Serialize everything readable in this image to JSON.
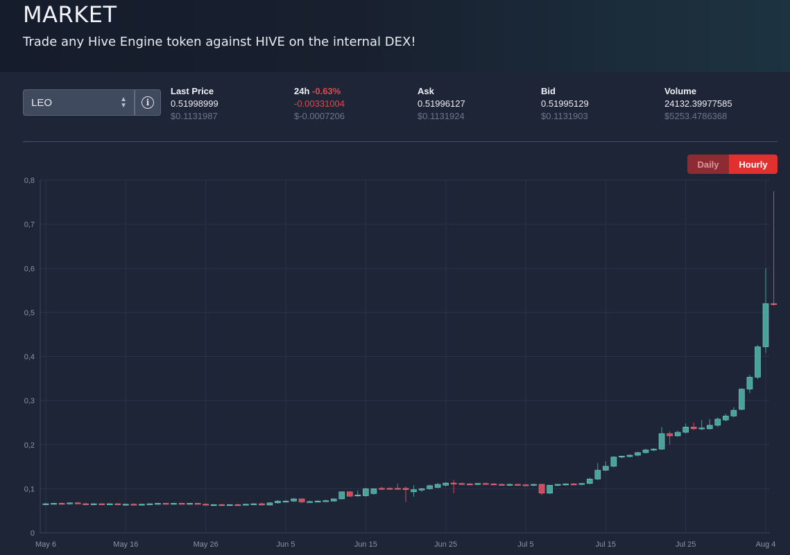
{
  "header": {
    "title": "MARKET",
    "subtitle": "Trade any Hive Engine token against HIVE on the internal DEX!"
  },
  "token": {
    "selected": "LEO"
  },
  "stats": {
    "last_price": {
      "label": "Last Price",
      "value": "0.51998999",
      "usd": "$0.1131987"
    },
    "change": {
      "label": "24h",
      "pct": "-0.63%",
      "value": "-0.00331004",
      "usd": "$-0.0007206"
    },
    "ask": {
      "label": "Ask",
      "value": "0.51996127",
      "usd": "$0.1131924"
    },
    "bid": {
      "label": "Bid",
      "value": "0.51995129",
      "usd": "$0.1131903"
    },
    "volume": {
      "label": "Volume",
      "value": "24132.39977585",
      "usd": "$5253.4786368"
    }
  },
  "interval": {
    "daily_label": "Daily",
    "hourly_label": "Hourly",
    "active": "Hourly"
  },
  "colors": {
    "up": "#4aa39a",
    "down": "#d04a5e",
    "accent": "#e0312f"
  },
  "chart_data": {
    "type": "candlestick",
    "y_tick_labels": [
      "0",
      "0,1",
      "0,2",
      "0,3",
      "0,4",
      "0,5",
      "0,6",
      "0,7",
      "0,8"
    ],
    "ylim": [
      0,
      0.8
    ],
    "x_tick_labels": [
      "May 6",
      "May 16",
      "May 26",
      "Jun 5",
      "Jun 15",
      "Jun 25",
      "Jul 5",
      "Jul 15",
      "Jul 25",
      "Aug 4"
    ],
    "x_range_days": [
      0,
      90
    ],
    "grid": true,
    "candles": [
      {
        "d": 0,
        "o": 0.065,
        "h": 0.068,
        "l": 0.063,
        "c": 0.066
      },
      {
        "d": 1,
        "o": 0.066,
        "h": 0.068,
        "l": 0.064,
        "c": 0.067
      },
      {
        "d": 2,
        "o": 0.067,
        "h": 0.069,
        "l": 0.065,
        "c": 0.066
      },
      {
        "d": 3,
        "o": 0.066,
        "h": 0.069,
        "l": 0.064,
        "c": 0.068
      },
      {
        "d": 4,
        "o": 0.068,
        "h": 0.07,
        "l": 0.066,
        "c": 0.066
      },
      {
        "d": 5,
        "o": 0.066,
        "h": 0.068,
        "l": 0.064,
        "c": 0.065
      },
      {
        "d": 6,
        "o": 0.065,
        "h": 0.067,
        "l": 0.063,
        "c": 0.066
      },
      {
        "d": 7,
        "o": 0.066,
        "h": 0.067,
        "l": 0.064,
        "c": 0.065
      },
      {
        "d": 8,
        "o": 0.065,
        "h": 0.067,
        "l": 0.063,
        "c": 0.066
      },
      {
        "d": 9,
        "o": 0.066,
        "h": 0.067,
        "l": 0.063,
        "c": 0.064
      },
      {
        "d": 10,
        "o": 0.064,
        "h": 0.066,
        "l": 0.062,
        "c": 0.065
      },
      {
        "d": 11,
        "o": 0.065,
        "h": 0.067,
        "l": 0.063,
        "c": 0.064
      },
      {
        "d": 12,
        "o": 0.064,
        "h": 0.066,
        "l": 0.062,
        "c": 0.065
      },
      {
        "d": 13,
        "o": 0.065,
        "h": 0.067,
        "l": 0.063,
        "c": 0.066
      },
      {
        "d": 14,
        "o": 0.066,
        "h": 0.068,
        "l": 0.064,
        "c": 0.067
      },
      {
        "d": 15,
        "o": 0.067,
        "h": 0.068,
        "l": 0.065,
        "c": 0.066
      },
      {
        "d": 16,
        "o": 0.066,
        "h": 0.068,
        "l": 0.064,
        "c": 0.067
      },
      {
        "d": 17,
        "o": 0.067,
        "h": 0.068,
        "l": 0.065,
        "c": 0.066
      },
      {
        "d": 18,
        "o": 0.066,
        "h": 0.068,
        "l": 0.064,
        "c": 0.067
      },
      {
        "d": 19,
        "o": 0.067,
        "h": 0.068,
        "l": 0.064,
        "c": 0.065
      },
      {
        "d": 20,
        "o": 0.065,
        "h": 0.067,
        "l": 0.062,
        "c": 0.063
      },
      {
        "d": 21,
        "o": 0.063,
        "h": 0.065,
        "l": 0.061,
        "c": 0.064
      },
      {
        "d": 22,
        "o": 0.064,
        "h": 0.066,
        "l": 0.062,
        "c": 0.063
      },
      {
        "d": 23,
        "o": 0.063,
        "h": 0.065,
        "l": 0.061,
        "c": 0.064
      },
      {
        "d": 24,
        "o": 0.064,
        "h": 0.066,
        "l": 0.062,
        "c": 0.063
      },
      {
        "d": 25,
        "o": 0.063,
        "h": 0.066,
        "l": 0.062,
        "c": 0.065
      },
      {
        "d": 26,
        "o": 0.065,
        "h": 0.067,
        "l": 0.063,
        "c": 0.066
      },
      {
        "d": 27,
        "o": 0.066,
        "h": 0.069,
        "l": 0.064,
        "c": 0.063
      },
      {
        "d": 28,
        "o": 0.063,
        "h": 0.069,
        "l": 0.062,
        "c": 0.068
      },
      {
        "d": 29,
        "o": 0.068,
        "h": 0.074,
        "l": 0.066,
        "c": 0.072
      },
      {
        "d": 30,
        "o": 0.071,
        "h": 0.074,
        "l": 0.069,
        "c": 0.072
      },
      {
        "d": 31,
        "o": 0.072,
        "h": 0.079,
        "l": 0.07,
        "c": 0.077
      },
      {
        "d": 32,
        "o": 0.077,
        "h": 0.078,
        "l": 0.068,
        "c": 0.07
      },
      {
        "d": 33,
        "o": 0.07,
        "h": 0.073,
        "l": 0.068,
        "c": 0.071
      },
      {
        "d": 34,
        "o": 0.071,
        "h": 0.074,
        "l": 0.069,
        "c": 0.072
      },
      {
        "d": 35,
        "o": 0.072,
        "h": 0.075,
        "l": 0.07,
        "c": 0.073
      },
      {
        "d": 36,
        "o": 0.072,
        "h": 0.078,
        "l": 0.071,
        "c": 0.077
      },
      {
        "d": 37,
        "o": 0.077,
        "h": 0.094,
        "l": 0.076,
        "c": 0.093
      },
      {
        "d": 38,
        "o": 0.093,
        "h": 0.094,
        "l": 0.082,
        "c": 0.083
      },
      {
        "d": 39,
        "o": 0.084,
        "h": 0.096,
        "l": 0.082,
        "c": 0.086
      },
      {
        "d": 40,
        "o": 0.084,
        "h": 0.102,
        "l": 0.082,
        "c": 0.1
      },
      {
        "d": 41,
        "o": 0.089,
        "h": 0.101,
        "l": 0.087,
        "c": 0.1
      },
      {
        "d": 42,
        "o": 0.101,
        "h": 0.104,
        "l": 0.097,
        "c": 0.1
      },
      {
        "d": 43,
        "o": 0.101,
        "h": 0.103,
        "l": 0.098,
        "c": 0.1
      },
      {
        "d": 44,
        "o": 0.101,
        "h": 0.112,
        "l": 0.098,
        "c": 0.1
      },
      {
        "d": 45,
        "o": 0.101,
        "h": 0.105,
        "l": 0.07,
        "c": 0.098
      },
      {
        "d": 46,
        "o": 0.093,
        "h": 0.108,
        "l": 0.082,
        "c": 0.098
      },
      {
        "d": 47,
        "o": 0.097,
        "h": 0.102,
        "l": 0.093,
        "c": 0.1
      },
      {
        "d": 48,
        "o": 0.1,
        "h": 0.109,
        "l": 0.098,
        "c": 0.107
      },
      {
        "d": 49,
        "o": 0.103,
        "h": 0.113,
        "l": 0.101,
        "c": 0.11
      },
      {
        "d": 50,
        "o": 0.108,
        "h": 0.115,
        "l": 0.105,
        "c": 0.113
      },
      {
        "d": 51,
        "o": 0.113,
        "h": 0.12,
        "l": 0.09,
        "c": 0.112
      },
      {
        "d": 52,
        "o": 0.112,
        "h": 0.114,
        "l": 0.109,
        "c": 0.111
      },
      {
        "d": 53,
        "o": 0.111,
        "h": 0.113,
        "l": 0.109,
        "c": 0.11
      },
      {
        "d": 54,
        "o": 0.11,
        "h": 0.113,
        "l": 0.108,
        "c": 0.112
      },
      {
        "d": 55,
        "o": 0.112,
        "h": 0.114,
        "l": 0.11,
        "c": 0.111
      },
      {
        "d": 56,
        "o": 0.111,
        "h": 0.113,
        "l": 0.109,
        "c": 0.11
      },
      {
        "d": 57,
        "o": 0.11,
        "h": 0.112,
        "l": 0.108,
        "c": 0.109
      },
      {
        "d": 58,
        "o": 0.109,
        "h": 0.112,
        "l": 0.107,
        "c": 0.11
      },
      {
        "d": 59,
        "o": 0.11,
        "h": 0.111,
        "l": 0.108,
        "c": 0.109
      },
      {
        "d": 60,
        "o": 0.109,
        "h": 0.111,
        "l": 0.107,
        "c": 0.108
      },
      {
        "d": 61,
        "o": 0.108,
        "h": 0.111,
        "l": 0.106,
        "c": 0.11
      },
      {
        "d": 62,
        "o": 0.11,
        "h": 0.111,
        "l": 0.086,
        "c": 0.09
      },
      {
        "d": 63,
        "o": 0.09,
        "h": 0.108,
        "l": 0.088,
        "c": 0.108
      },
      {
        "d": 64,
        "o": 0.108,
        "h": 0.111,
        "l": 0.106,
        "c": 0.11
      },
      {
        "d": 65,
        "o": 0.11,
        "h": 0.112,
        "l": 0.107,
        "c": 0.111
      },
      {
        "d": 66,
        "o": 0.111,
        "h": 0.113,
        "l": 0.109,
        "c": 0.11
      },
      {
        "d": 67,
        "o": 0.11,
        "h": 0.113,
        "l": 0.108,
        "c": 0.112
      },
      {
        "d": 68,
        "o": 0.112,
        "h": 0.125,
        "l": 0.11,
        "c": 0.122
      },
      {
        "d": 69,
        "o": 0.122,
        "h": 0.158,
        "l": 0.12,
        "c": 0.142
      },
      {
        "d": 70,
        "o": 0.142,
        "h": 0.162,
        "l": 0.14,
        "c": 0.151
      },
      {
        "d": 71,
        "o": 0.151,
        "h": 0.174,
        "l": 0.149,
        "c": 0.172
      },
      {
        "d": 72,
        "o": 0.172,
        "h": 0.175,
        "l": 0.169,
        "c": 0.174
      },
      {
        "d": 73,
        "o": 0.173,
        "h": 0.178,
        "l": 0.171,
        "c": 0.176
      },
      {
        "d": 74,
        "o": 0.176,
        "h": 0.184,
        "l": 0.174,
        "c": 0.182
      },
      {
        "d": 75,
        "o": 0.182,
        "h": 0.191,
        "l": 0.18,
        "c": 0.188
      },
      {
        "d": 76,
        "o": 0.188,
        "h": 0.192,
        "l": 0.185,
        "c": 0.19
      },
      {
        "d": 77,
        "o": 0.19,
        "h": 0.24,
        "l": 0.188,
        "c": 0.225
      },
      {
        "d": 78,
        "o": 0.225,
        "h": 0.23,
        "l": 0.2,
        "c": 0.22
      },
      {
        "d": 79,
        "o": 0.22,
        "h": 0.232,
        "l": 0.218,
        "c": 0.228
      },
      {
        "d": 80,
        "o": 0.228,
        "h": 0.248,
        "l": 0.225,
        "c": 0.24
      },
      {
        "d": 81,
        "o": 0.24,
        "h": 0.25,
        "l": 0.233,
        "c": 0.236
      },
      {
        "d": 82,
        "o": 0.237,
        "h": 0.256,
        "l": 0.233,
        "c": 0.238
      },
      {
        "d": 83,
        "o": 0.236,
        "h": 0.258,
        "l": 0.234,
        "c": 0.244
      },
      {
        "d": 84,
        "o": 0.244,
        "h": 0.262,
        "l": 0.24,
        "c": 0.258
      },
      {
        "d": 85,
        "o": 0.256,
        "h": 0.27,
        "l": 0.253,
        "c": 0.265
      },
      {
        "d": 86,
        "o": 0.265,
        "h": 0.285,
        "l": 0.262,
        "c": 0.278
      },
      {
        "d": 87,
        "o": 0.28,
        "h": 0.328,
        "l": 0.278,
        "c": 0.326
      },
      {
        "d": 88,
        "o": 0.326,
        "h": 0.358,
        "l": 0.317,
        "c": 0.353
      },
      {
        "d": 89,
        "o": 0.353,
        "h": 0.426,
        "l": 0.349,
        "c": 0.422
      },
      {
        "d": 90,
        "o": 0.422,
        "h": 0.6,
        "l": 0.408,
        "c": 0.52
      },
      {
        "d": 91,
        "o": 0.52,
        "h": 0.775,
        "l": 0.515,
        "c": 0.518
      }
    ]
  }
}
